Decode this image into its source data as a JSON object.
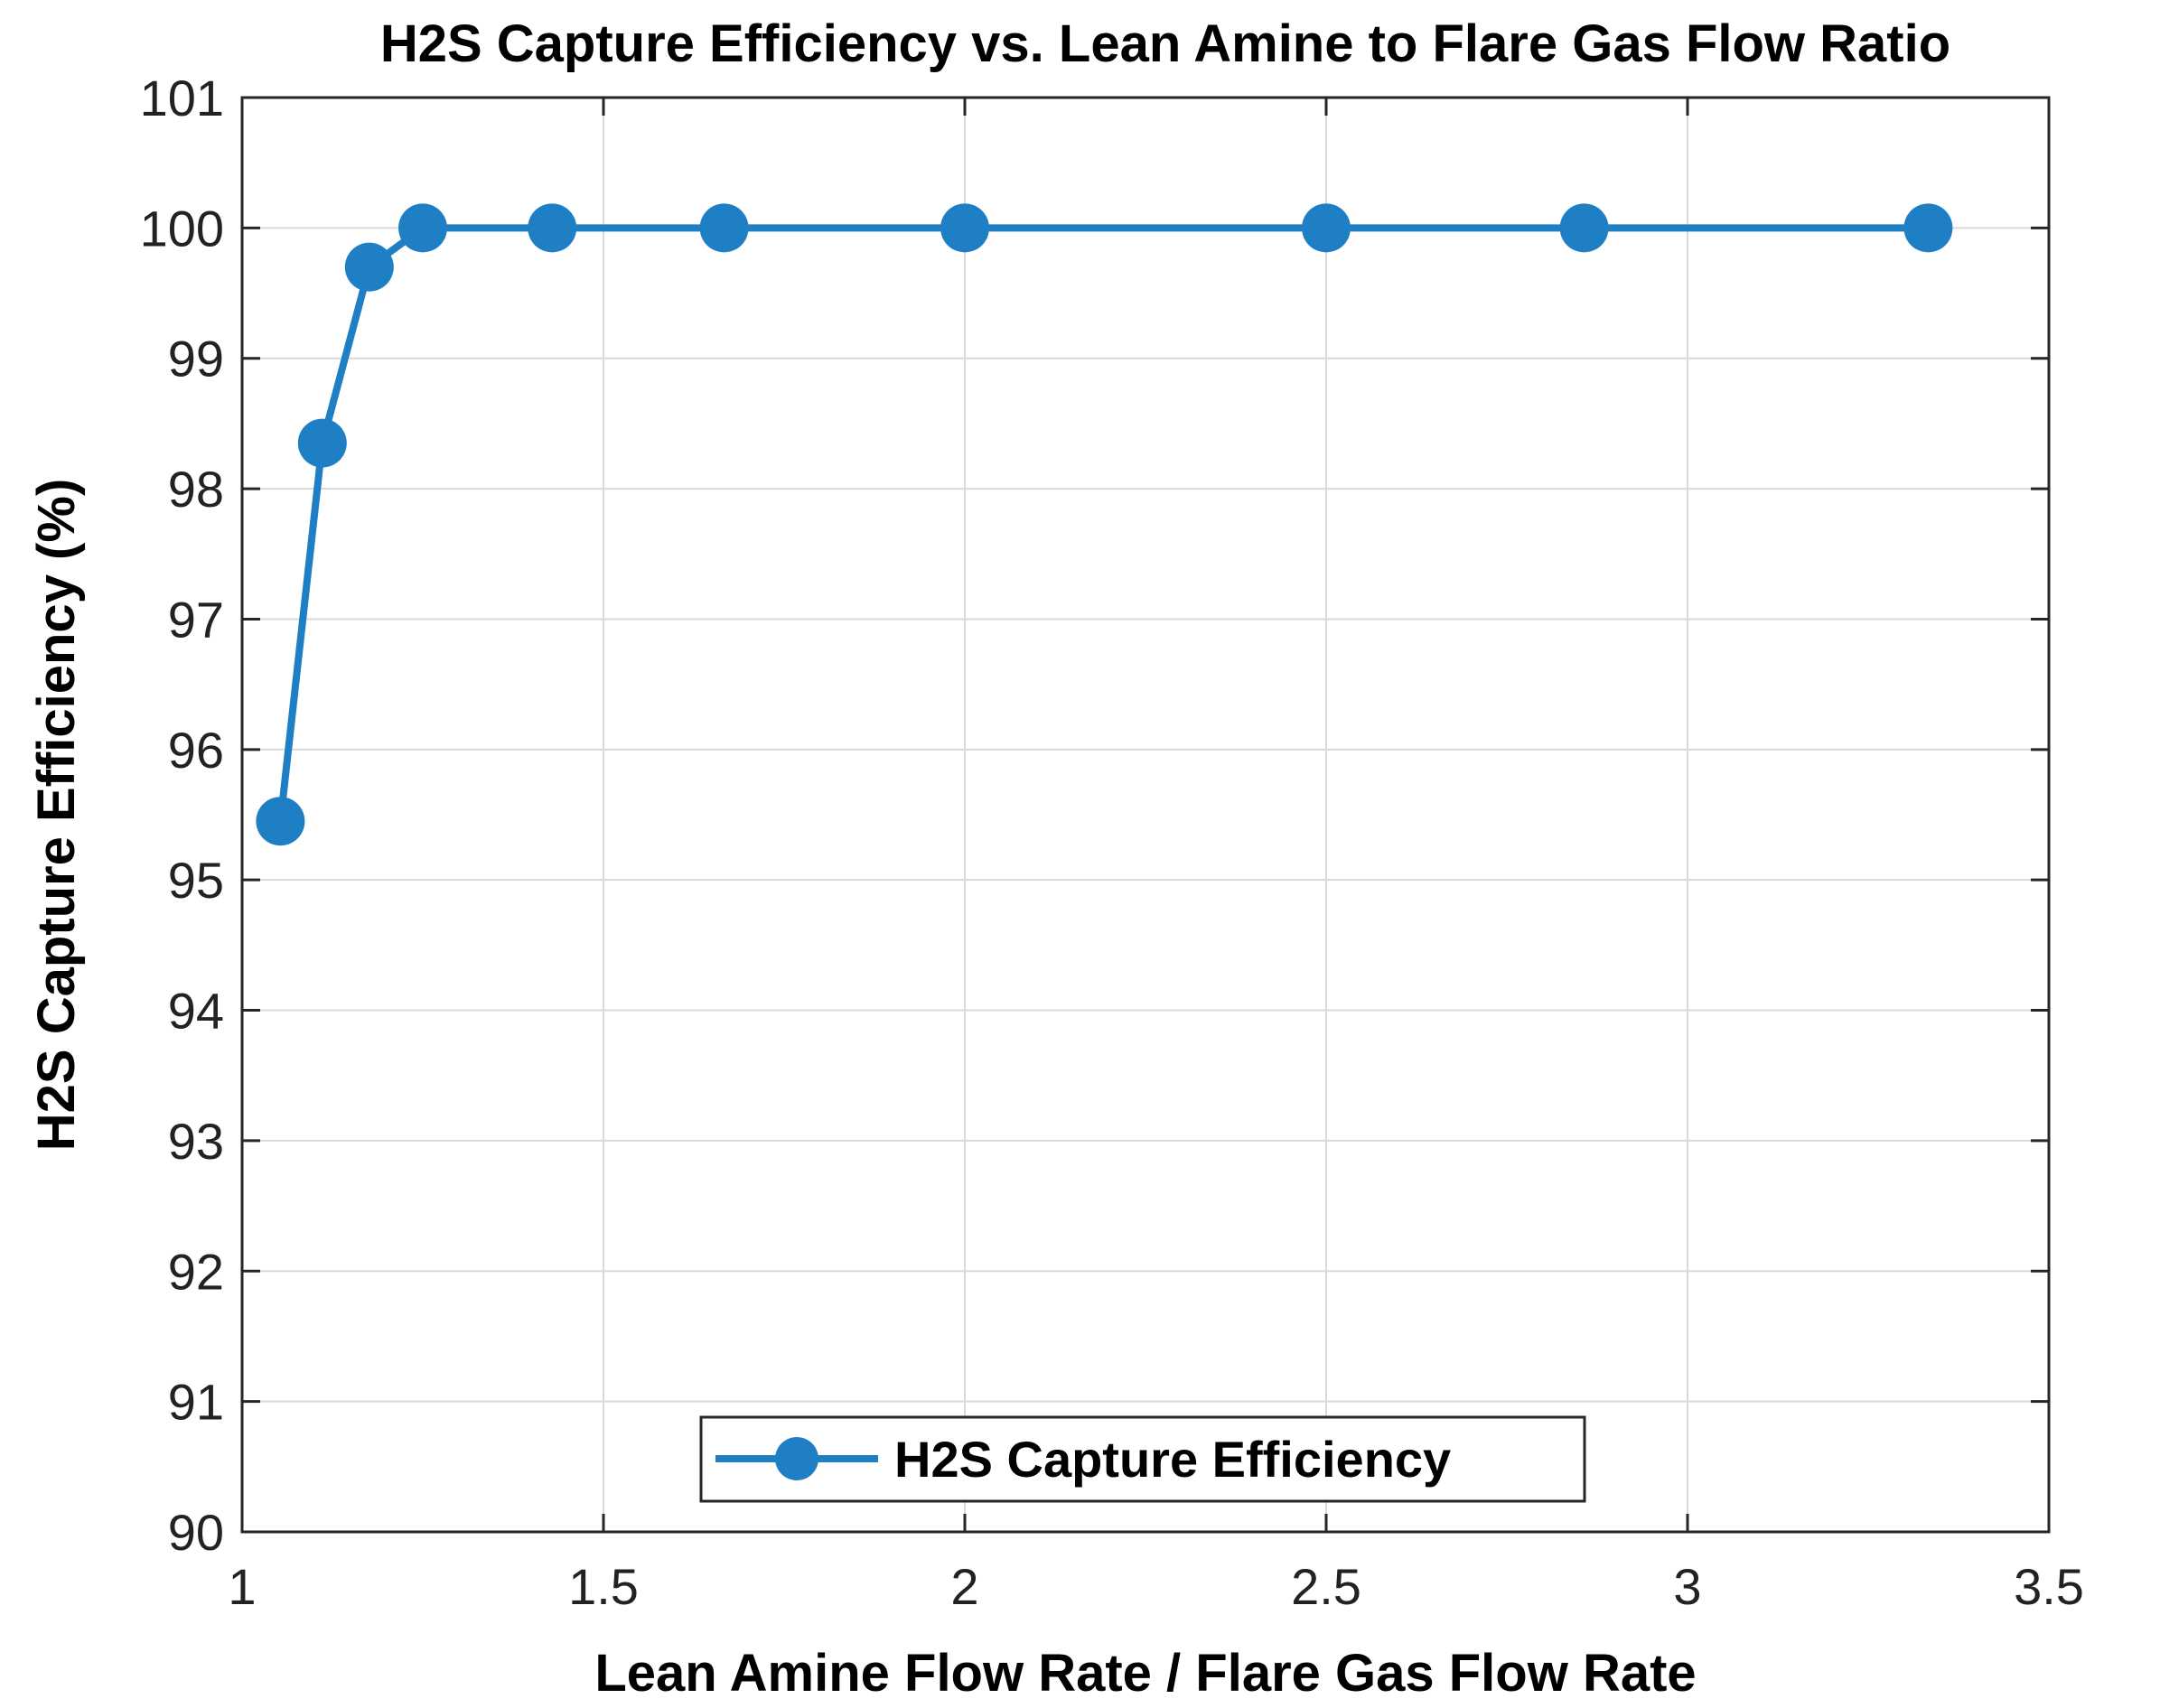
{
  "chart_data": {
    "type": "line",
    "title": "H2S Capture Efficiency vs. Lean Amine to Flare Gas Flow Ratio",
    "xlabel": "Lean Amine Flow Rate / Flare Gas Flow Rate",
    "ylabel": "H2S Capture Efficiency (%)",
    "xlim": [
      1,
      3.5
    ],
    "ylim": [
      90,
      101
    ],
    "xticks": [
      1,
      1.5,
      2,
      2.5,
      3,
      3.5
    ],
    "xtick_labels": [
      "1",
      "1.5",
      "2",
      "2.5",
      "3",
      "3.5"
    ],
    "yticks": [
      90,
      91,
      92,
      93,
      94,
      95,
      96,
      97,
      98,
      99,
      100,
      101
    ],
    "ytick_labels": [
      "90",
      "91",
      "92",
      "93",
      "94",
      "95",
      "96",
      "97",
      "98",
      "99",
      "100",
      "101"
    ],
    "grid": true,
    "legend_position": "bottom-center",
    "series": [
      {
        "name": "H2S Capture Efficiency",
        "color": "#1f7fc4",
        "marker": "circle",
        "x": [
          1.053,
          1.111,
          1.176,
          1.25,
          1.429,
          1.667,
          2.0,
          2.5,
          2.857,
          3.333
        ],
        "y": [
          95.45,
          98.35,
          99.7,
          100.0,
          100.0,
          100.0,
          100.0,
          100.0,
          100.0,
          100.0
        ]
      }
    ]
  }
}
